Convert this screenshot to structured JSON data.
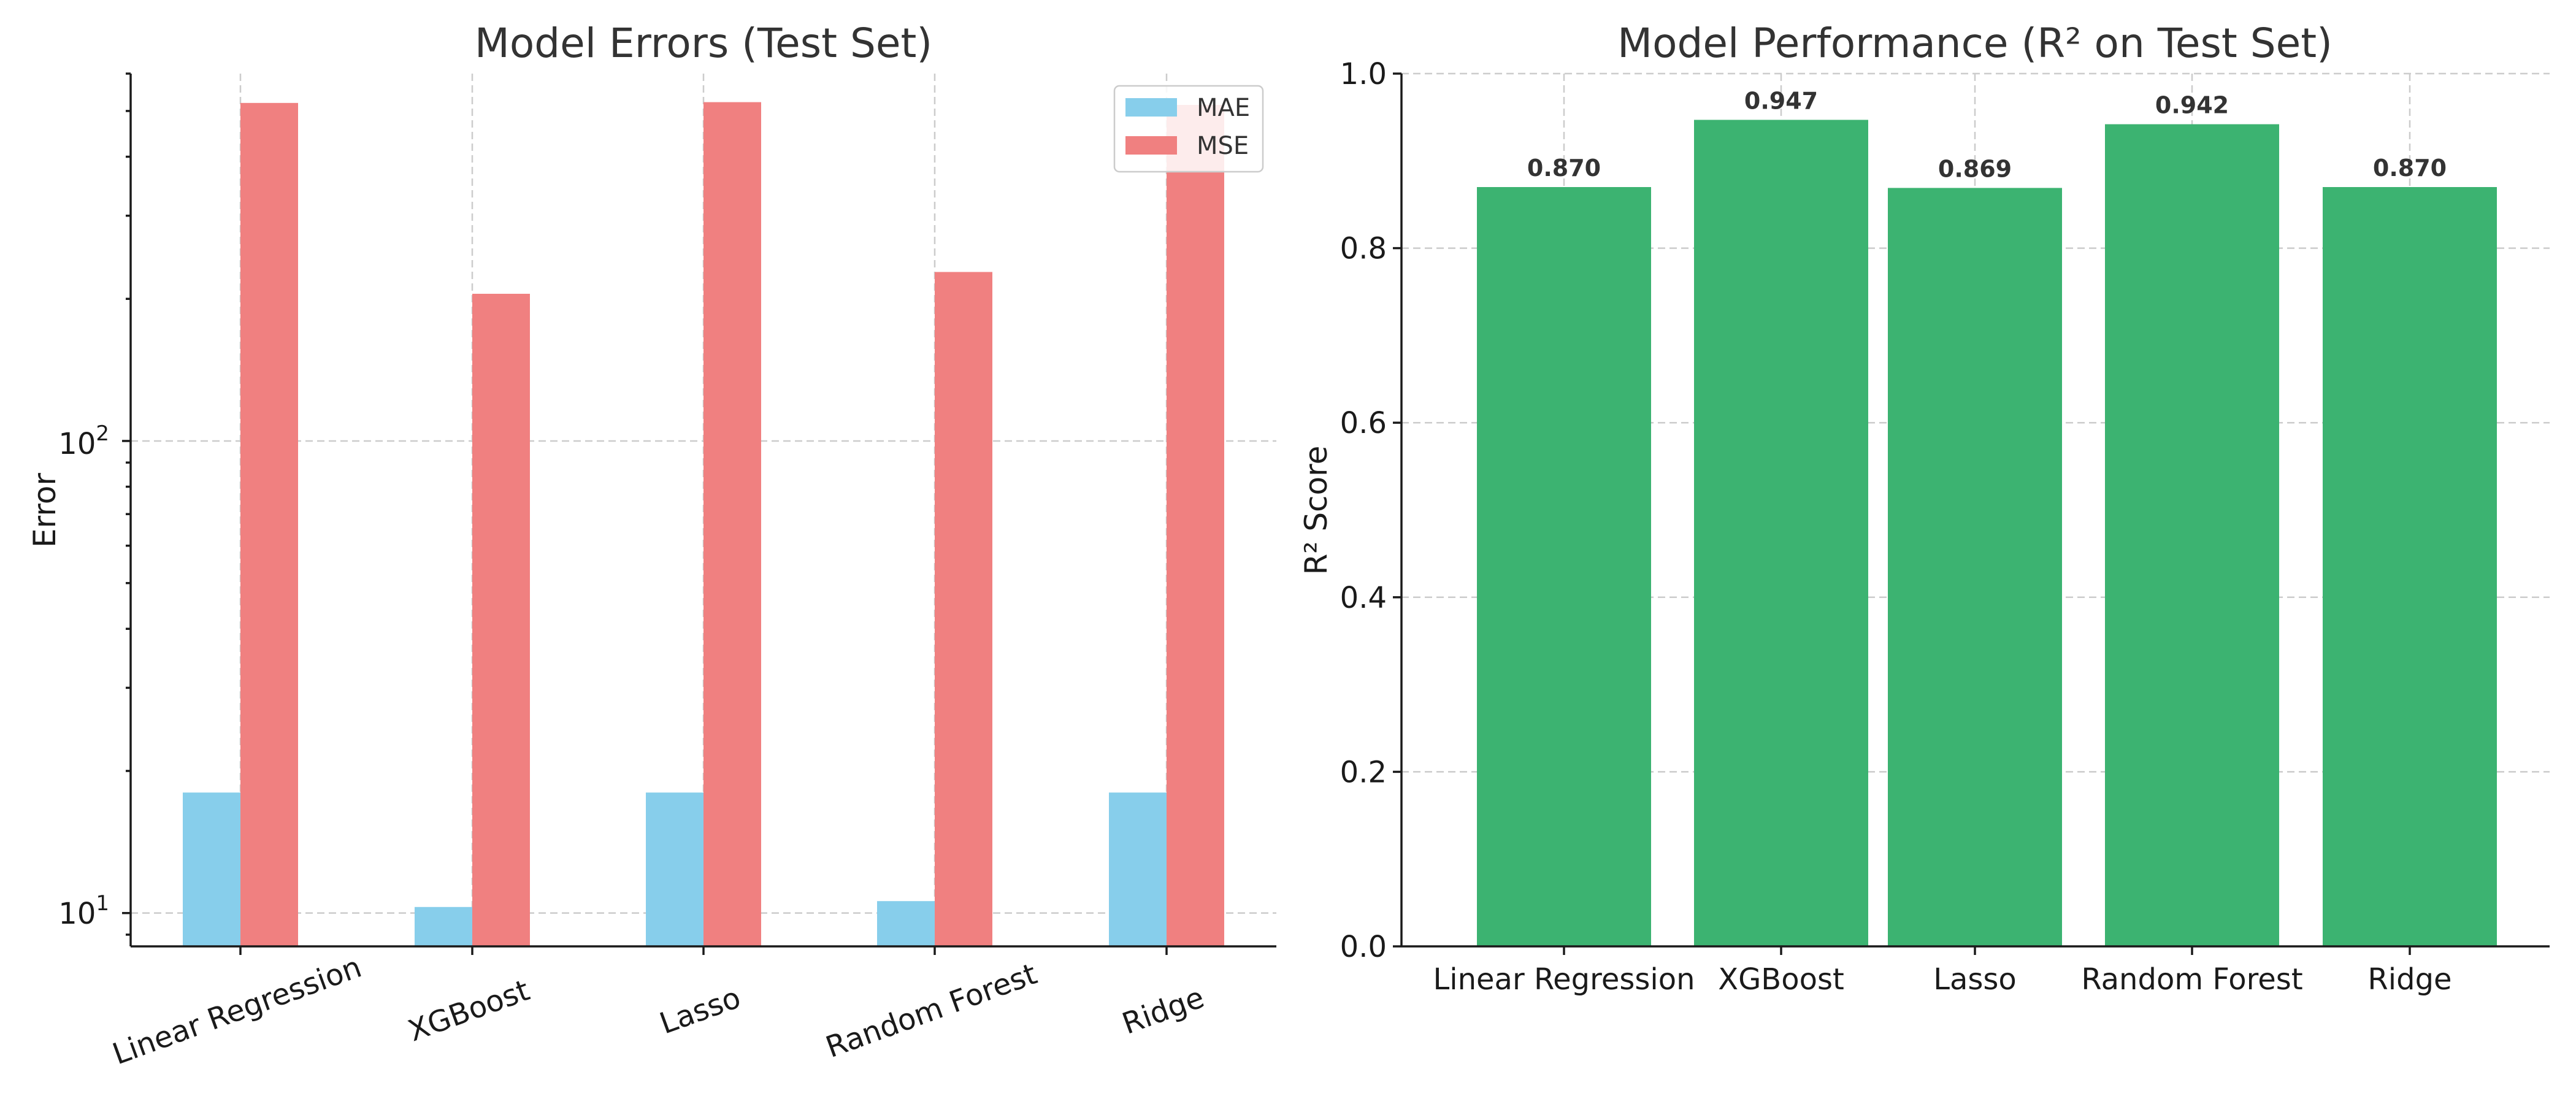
{
  "chart_data": [
    {
      "type": "bar",
      "title": "Model Errors (Test Set)",
      "xlabel": "",
      "ylabel": "Error",
      "yscale": "log",
      "ylim": [
        8.5,
        600
      ],
      "yticks": [
        {
          "base": "10",
          "exp": "1"
        },
        {
          "base": "10",
          "exp": "2"
        }
      ],
      "grid": true,
      "legend_position": "top-right",
      "categories": [
        "Linear Regression",
        "XGBoost",
        "Lasso",
        "Random Forest",
        "Ridge"
      ],
      "series": [
        {
          "name": "MAE",
          "color": "#87CEEB",
          "values": [
            18.0,
            10.3,
            18.0,
            10.6,
            18.0
          ]
        },
        {
          "name": "MSE",
          "color": "#F08080",
          "values": [
            520,
            205,
            522,
            228,
            515
          ]
        }
      ]
    },
    {
      "type": "bar",
      "title": "Model Performance (R² on Test Set)",
      "xlabel": "",
      "ylabel": "R² Score",
      "ylim": [
        0,
        1.0
      ],
      "yticks": [
        "0.0",
        "0.2",
        "0.4",
        "0.6",
        "0.8",
        "1.0"
      ],
      "grid": true,
      "color": "#3CB371",
      "categories": [
        "Linear Regression",
        "XGBoost",
        "Lasso",
        "Random Forest",
        "Ridge"
      ],
      "values": [
        0.87,
        0.947,
        0.869,
        0.942,
        0.87
      ],
      "data_labels": [
        "0.870",
        "0.947",
        "0.869",
        "0.942",
        "0.870"
      ]
    }
  ]
}
